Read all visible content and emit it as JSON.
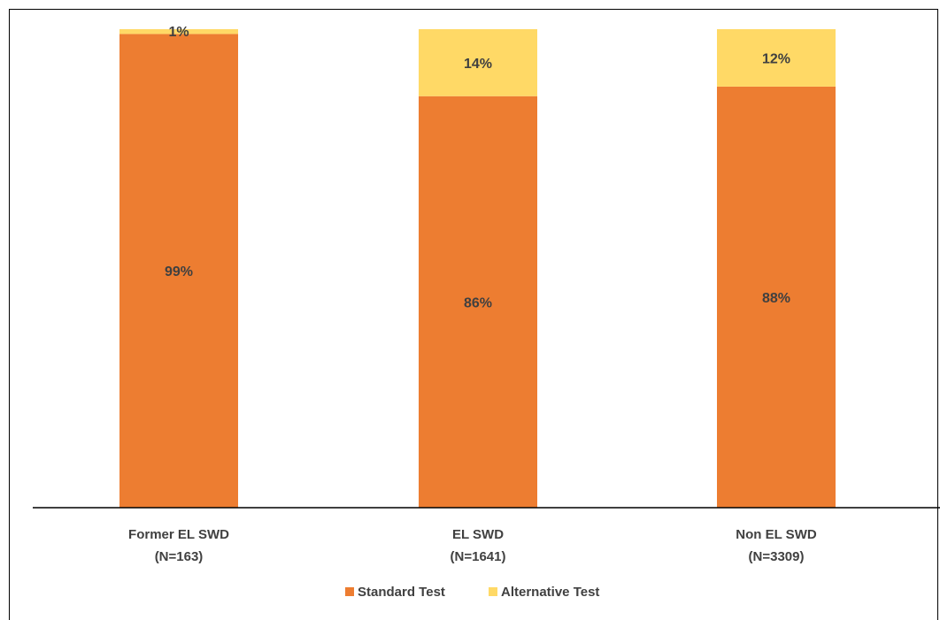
{
  "chart_data": {
    "type": "bar",
    "stacked": true,
    "normalized": true,
    "categories": [
      {
        "line1": "Former EL SWD",
        "line2": "(N=163)"
      },
      {
        "line1": "EL SWD",
        "line2": "(N=1641)"
      },
      {
        "line1": "Non EL SWD",
        "line2": "(N=3309)"
      }
    ],
    "series": [
      {
        "name": "Standard Test",
        "color": "#ED7D31",
        "values": [
          99,
          86,
          88
        ],
        "labels": [
          "99%",
          "86%",
          "88%"
        ]
      },
      {
        "name": "Alternative Test",
        "color": "#FFD966",
        "values": [
          1,
          14,
          12
        ],
        "labels": [
          "1%",
          "14%",
          "12%"
        ]
      }
    ],
    "ylim": [
      0,
      100
    ],
    "grid": false,
    "legend_position": "bottom"
  }
}
